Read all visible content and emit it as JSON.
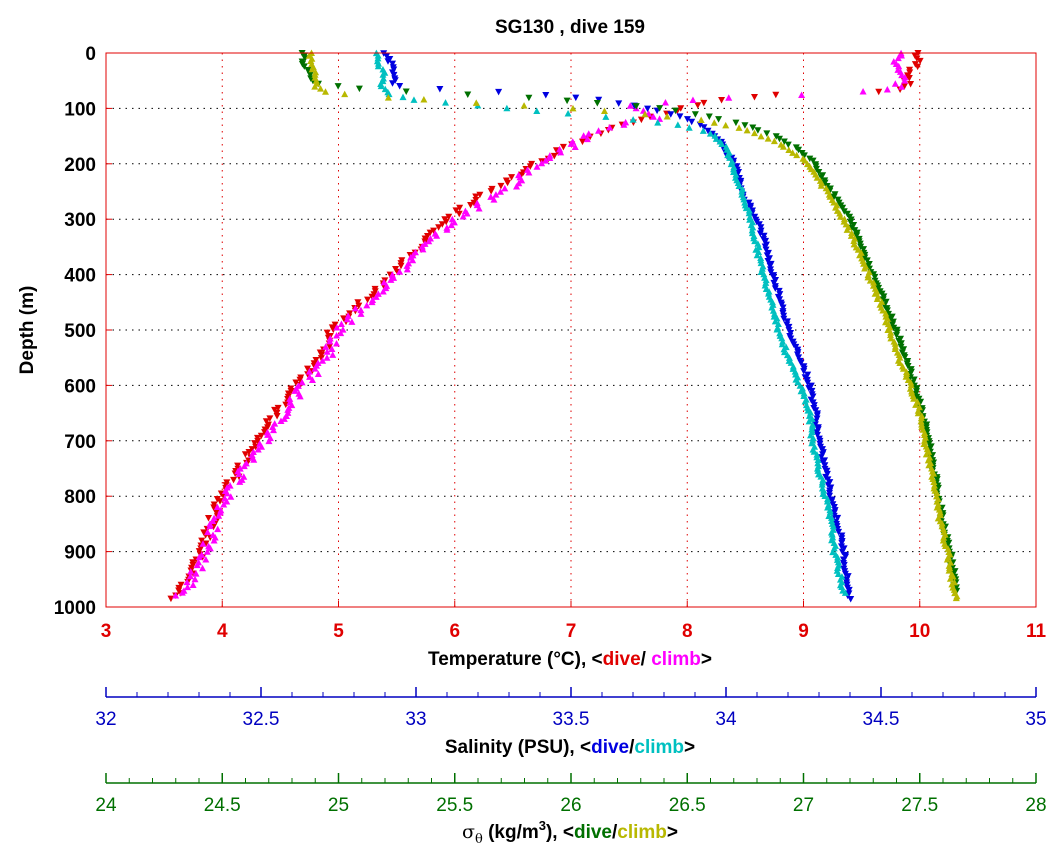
{
  "chart_data": {
    "type": "scatter",
    "title": "SG130 , dive 159",
    "y_axis": {
      "label": "Depth (m)",
      "range": [
        0,
        1000
      ],
      "reversed": true,
      "ticks": [
        0,
        100,
        200,
        300,
        400,
        500,
        600,
        700,
        800,
        900,
        1000
      ]
    },
    "x_axes": [
      {
        "id": "temperature",
        "label_prefix": "Temperature (°C), <",
        "label_dive": "dive",
        "label_sep": "/ ",
        "label_climb": "climb",
        "label_suffix": ">",
        "range": [
          3,
          11
        ],
        "ticks": [
          3,
          4,
          5,
          6,
          7,
          8,
          9,
          10,
          11
        ],
        "minor_ticks": 0,
        "color": "#e00000",
        "dive_color": "#e00000",
        "climb_color": "#ff00ff"
      },
      {
        "id": "salinity",
        "label_prefix": "Salinity (PSU), <",
        "label_dive": "dive",
        "label_sep": "/",
        "label_climb": "climb",
        "label_suffix": ">",
        "range": [
          32,
          35
        ],
        "ticks": [
          "32",
          "32.5",
          "33",
          "33.5",
          "34",
          "34.5",
          "35"
        ],
        "minor_ticks": 4,
        "color": "#0000c0",
        "dive_color": "#0000e0",
        "climb_color": "#00c0c0"
      },
      {
        "id": "sigma",
        "label_symbol": "σ",
        "label_sub": "θ",
        "label_prefix": " (kg/m",
        "label_sup": "3",
        "label_mid": "), <",
        "label_dive": "dive",
        "label_sep": "/",
        "label_climb": "climb",
        "label_suffix": ">",
        "range": [
          24,
          28
        ],
        "ticks": [
          "24",
          "24.5",
          "25",
          "25.5",
          "26",
          "26.5",
          "27",
          "27.5",
          "28"
        ],
        "minor_ticks": 4,
        "color": "#007000",
        "dive_color": "#007000",
        "climb_color": "#b8b800"
      }
    ],
    "grid": true,
    "series": [
      {
        "axis": "temperature",
        "marker": "triangle-down",
        "color": "#e00000",
        "profile": [
          [
            0,
            9.98
          ],
          [
            20,
            9.97
          ],
          [
            50,
            9.9
          ],
          [
            68,
            9.85
          ],
          [
            72,
            9.4
          ],
          [
            75,
            8.8
          ],
          [
            80,
            8.5
          ],
          [
            88,
            8.2
          ],
          [
            100,
            7.95
          ],
          [
            115,
            7.7
          ],
          [
            130,
            7.45
          ],
          [
            145,
            7.25
          ],
          [
            170,
            6.95
          ],
          [
            200,
            6.7
          ],
          [
            230,
            6.45
          ],
          [
            260,
            6.2
          ],
          [
            300,
            5.95
          ],
          [
            350,
            5.7
          ],
          [
            400,
            5.45
          ],
          [
            450,
            5.2
          ],
          [
            500,
            4.95
          ],
          [
            550,
            4.85
          ],
          [
            600,
            4.65
          ],
          [
            650,
            4.45
          ],
          [
            700,
            4.3
          ],
          [
            750,
            4.15
          ],
          [
            800,
            4.0
          ],
          [
            850,
            3.9
          ],
          [
            900,
            3.82
          ],
          [
            950,
            3.7
          ],
          [
            985,
            3.58
          ]
        ],
        "jitter": 0.04
      },
      {
        "axis": "temperature",
        "marker": "triangle-up",
        "color": "#ff00ff",
        "profile": [
          [
            0,
            9.82
          ],
          [
            20,
            9.82
          ],
          [
            50,
            9.85
          ],
          [
            65,
            9.8
          ],
          [
            70,
            9.5
          ],
          [
            75,
            9.1
          ],
          [
            78,
            8.6
          ],
          [
            85,
            8.0
          ],
          [
            95,
            7.5
          ],
          [
            100,
            7.55
          ],
          [
            108,
            7.7
          ],
          [
            118,
            7.75
          ],
          [
            125,
            7.5
          ],
          [
            135,
            7.3
          ],
          [
            150,
            7.15
          ],
          [
            180,
            6.9
          ],
          [
            210,
            6.65
          ],
          [
            240,
            6.5
          ],
          [
            270,
            6.25
          ],
          [
            300,
            6.0
          ],
          [
            350,
            5.75
          ],
          [
            400,
            5.5
          ],
          [
            450,
            5.25
          ],
          [
            500,
            5.0
          ],
          [
            550,
            4.9
          ],
          [
            600,
            4.7
          ],
          [
            650,
            4.52
          ],
          [
            700,
            4.38
          ],
          [
            750,
            4.18
          ],
          [
            800,
            4.05
          ],
          [
            850,
            3.93
          ],
          [
            900,
            3.85
          ],
          [
            950,
            3.75
          ],
          [
            980,
            3.62
          ]
        ],
        "jitter": 0.05
      },
      {
        "axis": "salinity",
        "marker": "triangle-down",
        "color": "#0000e0",
        "profile": [
          [
            0,
            32.9
          ],
          [
            20,
            32.92
          ],
          [
            40,
            32.93
          ],
          [
            55,
            32.93
          ],
          [
            62,
            32.95
          ],
          [
            68,
            33.2
          ],
          [
            75,
            33.4
          ],
          [
            85,
            33.6
          ],
          [
            100,
            33.75
          ],
          [
            115,
            33.85
          ],
          [
            130,
            33.92
          ],
          [
            145,
            33.96
          ],
          [
            160,
            33.98
          ],
          [
            180,
            34.0
          ],
          [
            200,
            34.03
          ],
          [
            250,
            34.05
          ],
          [
            300,
            34.1
          ],
          [
            350,
            34.13
          ],
          [
            400,
            34.15
          ],
          [
            450,
            34.18
          ],
          [
            500,
            34.2
          ],
          [
            550,
            34.24
          ],
          [
            600,
            34.27
          ],
          [
            650,
            34.29
          ],
          [
            700,
            34.3
          ],
          [
            750,
            34.32
          ],
          [
            800,
            34.34
          ],
          [
            850,
            34.36
          ],
          [
            900,
            34.38
          ],
          [
            950,
            34.39
          ],
          [
            985,
            34.4
          ]
        ],
        "jitter": 0.006
      },
      {
        "axis": "salinity",
        "marker": "triangle-up",
        "color": "#00c0c0",
        "profile": [
          [
            0,
            32.87
          ],
          [
            20,
            32.88
          ],
          [
            40,
            32.9
          ],
          [
            60,
            32.89
          ],
          [
            75,
            32.92
          ],
          [
            85,
            33.0
          ],
          [
            95,
            33.2
          ],
          [
            105,
            33.4
          ],
          [
            112,
            33.55
          ],
          [
            120,
            33.7
          ],
          [
            130,
            33.85
          ],
          [
            145,
            33.95
          ],
          [
            170,
            34.0
          ],
          [
            200,
            34.02
          ],
          [
            250,
            34.05
          ],
          [
            300,
            34.08
          ],
          [
            350,
            34.1
          ],
          [
            400,
            34.12
          ],
          [
            450,
            34.15
          ],
          [
            500,
            34.17
          ],
          [
            550,
            34.2
          ],
          [
            600,
            34.24
          ],
          [
            650,
            34.27
          ],
          [
            700,
            34.28
          ],
          [
            750,
            34.3
          ],
          [
            800,
            34.32
          ],
          [
            850,
            34.34
          ],
          [
            900,
            34.35
          ],
          [
            950,
            34.37
          ],
          [
            975,
            34.38
          ]
        ],
        "jitter": 0.006
      },
      {
        "axis": "sigma",
        "marker": "triangle-down",
        "color": "#007000",
        "profile": [
          [
            0,
            24.85
          ],
          [
            20,
            24.85
          ],
          [
            40,
            24.88
          ],
          [
            55,
            24.9
          ],
          [
            65,
            25.1
          ],
          [
            72,
            25.4
          ],
          [
            80,
            25.8
          ],
          [
            90,
            26.1
          ],
          [
            100,
            26.4
          ],
          [
            115,
            26.6
          ],
          [
            130,
            26.75
          ],
          [
            150,
            26.88
          ],
          [
            175,
            26.98
          ],
          [
            200,
            27.05
          ],
          [
            250,
            27.12
          ],
          [
            300,
            27.2
          ],
          [
            350,
            27.25
          ],
          [
            400,
            27.3
          ],
          [
            450,
            27.35
          ],
          [
            500,
            27.4
          ],
          [
            550,
            27.44
          ],
          [
            600,
            27.48
          ],
          [
            650,
            27.51
          ],
          [
            700,
            27.54
          ],
          [
            750,
            27.56
          ],
          [
            800,
            27.58
          ],
          [
            850,
            27.6
          ],
          [
            900,
            27.63
          ],
          [
            950,
            27.65
          ],
          [
            975,
            27.66
          ]
        ],
        "jitter": 0.008
      },
      {
        "axis": "sigma",
        "marker": "triangle-up",
        "color": "#b8b800",
        "profile": [
          [
            0,
            24.88
          ],
          [
            20,
            24.88
          ],
          [
            40,
            24.9
          ],
          [
            60,
            24.9
          ],
          [
            72,
            24.95
          ],
          [
            80,
            25.2
          ],
          [
            90,
            25.6
          ],
          [
            100,
            26.0
          ],
          [
            110,
            26.3
          ],
          [
            120,
            26.55
          ],
          [
            135,
            26.72
          ],
          [
            155,
            26.85
          ],
          [
            180,
            26.96
          ],
          [
            200,
            27.02
          ],
          [
            250,
            27.1
          ],
          [
            300,
            27.17
          ],
          [
            350,
            27.23
          ],
          [
            400,
            27.28
          ],
          [
            450,
            27.33
          ],
          [
            500,
            27.37
          ],
          [
            550,
            27.41
          ],
          [
            600,
            27.46
          ],
          [
            650,
            27.5
          ],
          [
            700,
            27.52
          ],
          [
            750,
            27.55
          ],
          [
            800,
            27.57
          ],
          [
            850,
            27.59
          ],
          [
            900,
            27.62
          ],
          [
            950,
            27.64
          ],
          [
            985,
            27.66
          ]
        ],
        "jitter": 0.008
      }
    ]
  }
}
